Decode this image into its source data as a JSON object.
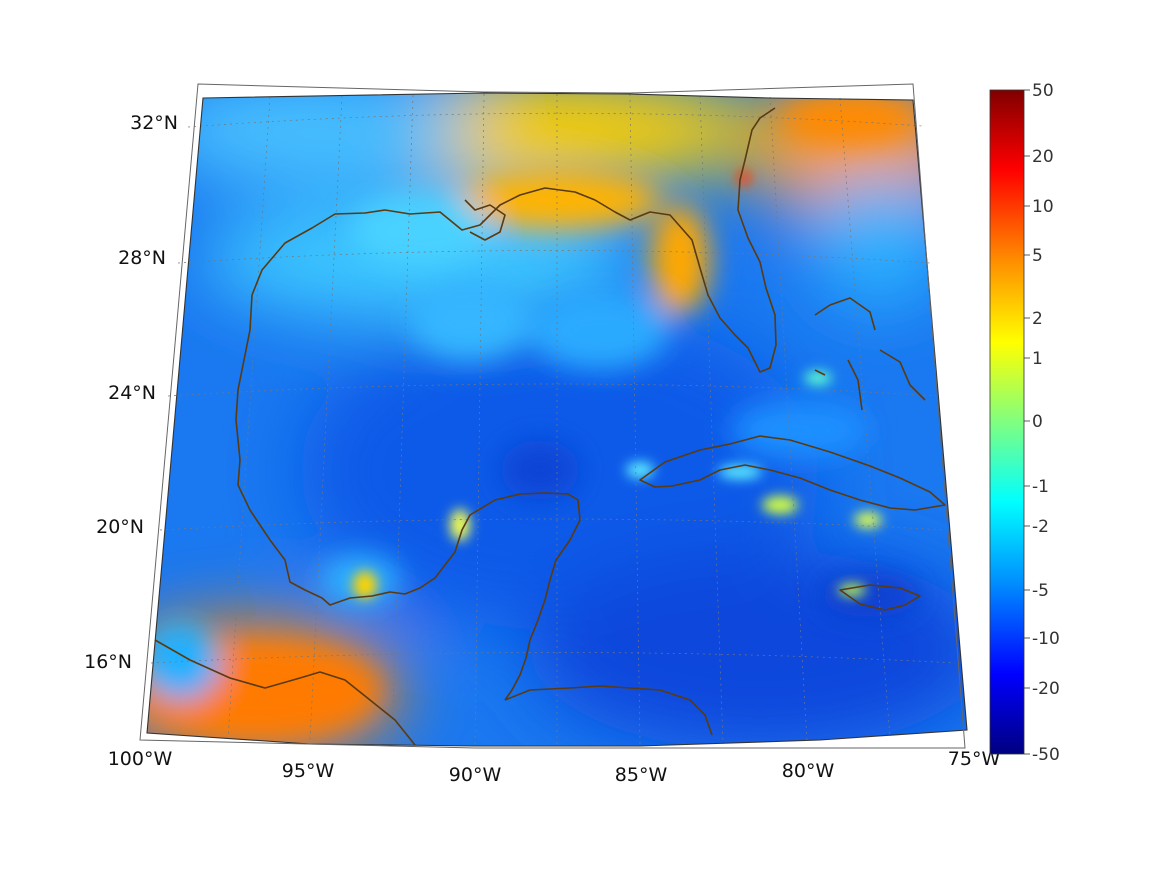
{
  "map": {
    "projection": "conic (Lambert-like)",
    "region": "Gulf of Mexico and Caribbean",
    "lon_range": [
      -100,
      -75
    ],
    "lat_range": [
      13.5,
      33
    ],
    "grid": true,
    "coastline_color": "#5a3a10",
    "lat_ticks": [
      {
        "value": 32,
        "label": "32°N"
      },
      {
        "value": 28,
        "label": "28°N"
      },
      {
        "value": 24,
        "label": "24°N"
      },
      {
        "value": 20,
        "label": "20°N"
      },
      {
        "value": 16,
        "label": "16°N"
      }
    ],
    "lon_ticks": [
      {
        "value": -100,
        "label": "100°W"
      },
      {
        "value": -95,
        "label": "95°W"
      },
      {
        "value": -90,
        "label": "90°W"
      },
      {
        "value": -85,
        "label": "85°W"
      },
      {
        "value": -80,
        "label": "80°W"
      },
      {
        "value": -75,
        "label": "75°W"
      }
    ]
  },
  "colorbar": {
    "colormap": "jet",
    "scale": "symmetric log",
    "orientation": "vertical",
    "placement": "right",
    "ticks": [
      "50",
      "20",
      "10",
      "5",
      "2",
      "1",
      "0",
      "-1",
      "-2",
      "-5",
      "-10",
      "-20",
      "-50"
    ],
    "colors": [
      "#7f0000",
      "#ff0000",
      "#ff8000",
      "#ffff00",
      "#80ff80",
      "#00ffff",
      "#0080ff",
      "#0000ff",
      "#00007f"
    ]
  },
  "field_regions": [
    {
      "name": "gulf-interior",
      "level": "-5 to -10"
    },
    {
      "name": "northern-gulf-coast",
      "level": "1 to 2"
    },
    {
      "name": "southeast-us-atlantic",
      "level": "5"
    },
    {
      "name": "mexico-pacific-southwest",
      "level": "5"
    },
    {
      "name": "caribbean-sea",
      "level": "-10 to -20"
    }
  ]
}
